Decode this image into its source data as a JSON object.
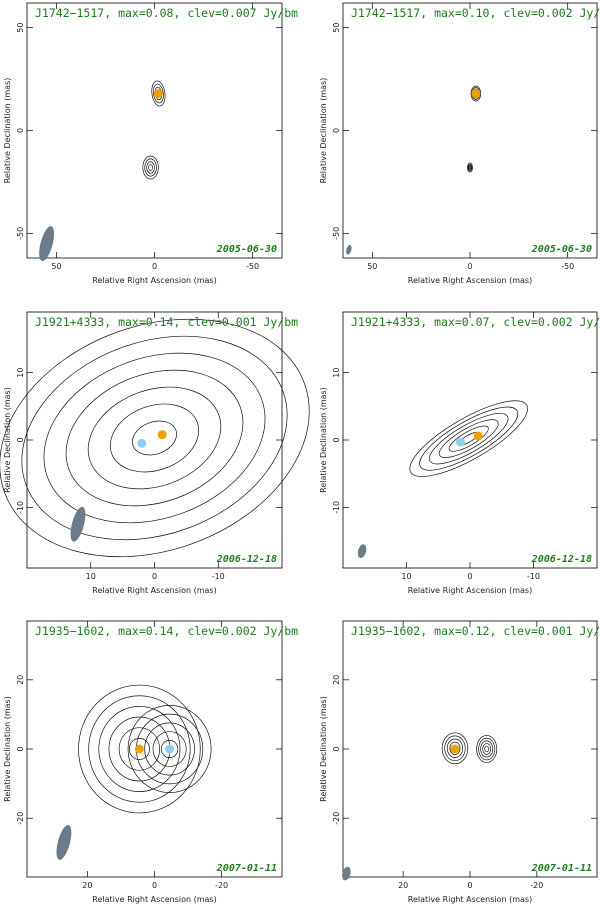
{
  "figure": {
    "xlabel": "Relative Right Ascension (mas)",
    "ylabel": "Relative Declination (mas)"
  },
  "colors": {
    "title_green": "#1f7a1f",
    "component_orange": "#f0a000",
    "component_blue": "#8fd0f0",
    "beam_gray": "#6a7b89"
  },
  "chart_data": [
    {
      "type": "contour",
      "title": "J1742−1517, max=0.08, clev=0.007 Jy/bm",
      "date": "2005-06-30",
      "xlim": [
        65,
        -65
      ],
      "ylim": [
        -62,
        62
      ],
      "xticks": [
        50,
        0,
        -50
      ],
      "yticks": [
        -50,
        0,
        50
      ],
      "components": [
        {
          "color": "orange",
          "x": -2,
          "y": 18
        }
      ],
      "beam": {
        "x": 55,
        "y": -55
      },
      "sources": [
        {
          "x": -2,
          "y": 18,
          "sx": 1.5,
          "sy": 5.5,
          "levels": 4,
          "tilt": -8
        },
        {
          "x": 2,
          "y": -18,
          "sx": 1.8,
          "sy": 5.0,
          "levels": 4,
          "tilt": 0
        }
      ]
    },
    {
      "type": "contour",
      "title": "J1742−1517, max=0.10, clev=0.002 Jy/bm",
      "date": "2005-06-30",
      "xlim": [
        65,
        -65
      ],
      "ylim": [
        -62,
        62
      ],
      "xticks": [
        50,
        0,
        -50
      ],
      "yticks": [
        -50,
        0,
        50
      ],
      "components": [
        {
          "color": "orange",
          "x": -3,
          "y": 18
        }
      ],
      "beam": {
        "x": 62,
        "y": -58
      },
      "sources": [
        {
          "x": -3,
          "y": 18,
          "sx": 0.9,
          "sy": 2.6,
          "levels": 5,
          "tilt": 0
        },
        {
          "x": 0,
          "y": -18,
          "sx": 0.6,
          "sy": 2.0,
          "levels": 4,
          "tilt": 0
        }
      ]
    },
    {
      "type": "contour",
      "title": "J1921+4333, max=0.14, clev=0.001 Jy/bm",
      "date": "2006-12-18",
      "xlim": [
        20,
        -20
      ],
      "ylim": [
        -19,
        19
      ],
      "xticks": [
        10,
        0,
        -10
      ],
      "yticks": [
        -10,
        0,
        10
      ],
      "components": [
        {
          "color": "blue",
          "x": 2,
          "y": -0.5
        },
        {
          "color": "orange",
          "x": -1.2,
          "y": 0.8
        }
      ],
      "beam": {
        "x": 12,
        "y": -12.5
      },
      "sources": [
        {
          "x": 0,
          "y": 0.3,
          "sx": 6.5,
          "sy": 8.5,
          "levels": 7,
          "tilt": -20
        }
      ]
    },
    {
      "type": "contour",
      "title": "J1921+4333, max=0.07, clev=0.002 Jy/bm",
      "date": "2006-12-18",
      "xlim": [
        20,
        -20
      ],
      "ylim": [
        -19,
        19
      ],
      "xticks": [
        10,
        0,
        -10
      ],
      "yticks": [
        -10,
        0,
        10
      ],
      "components": [
        {
          "color": "blue",
          "x": 1.5,
          "y": -0.3
        },
        {
          "color": "orange",
          "x": -1.3,
          "y": 0.6
        }
      ],
      "beam": {
        "x": 17,
        "y": -16.5
      },
      "sources": [
        {
          "x": 0.2,
          "y": 0.2,
          "sx": 3.2,
          "sy": 1.8,
          "levels": 6,
          "tilt": -30
        }
      ]
    },
    {
      "type": "contour",
      "title": "J1935−1602, max=0.14, clev=0.002 Jy/bm",
      "date": "2007-01-11",
      "xlim": [
        38,
        -38
      ],
      "ylim": [
        -37,
        37
      ],
      "xticks": [
        20,
        0,
        -20
      ],
      "yticks": [
        -20,
        0,
        20
      ],
      "components": [
        {
          "color": "orange",
          "x": 4.5,
          "y": 0
        },
        {
          "color": "blue",
          "x": -4.5,
          "y": 0
        }
      ],
      "beam": {
        "x": 27,
        "y": -27
      },
      "sources": [
        {
          "x": 4.5,
          "y": 0,
          "sx": 5.5,
          "sy": 11,
          "levels": 6,
          "tilt": 0
        },
        {
          "x": -4.5,
          "y": 0,
          "sx": 4.5,
          "sy": 9,
          "levels": 5,
          "tilt": 0
        }
      ]
    },
    {
      "type": "contour",
      "title": "J1935−1602, max=0.12, clev=0.001 Jy/bm",
      "date": "2007-01-11",
      "xlim": [
        38,
        -38
      ],
      "ylim": [
        -37,
        37
      ],
      "xticks": [
        20,
        0,
        -20
      ],
      "yticks": [
        -20,
        0,
        20
      ],
      "components": [
        {
          "color": "orange",
          "x": 4.5,
          "y": 0
        }
      ],
      "beam": {
        "x": 37,
        "y": -36
      },
      "sources": [
        {
          "x": 4.5,
          "y": 0.2,
          "sx": 1.4,
          "sy": 3.2,
          "levels": 5,
          "tilt": 0
        },
        {
          "x": -5,
          "y": 0,
          "sx": 1.1,
          "sy": 2.8,
          "levels": 5,
          "tilt": 0
        }
      ]
    }
  ]
}
